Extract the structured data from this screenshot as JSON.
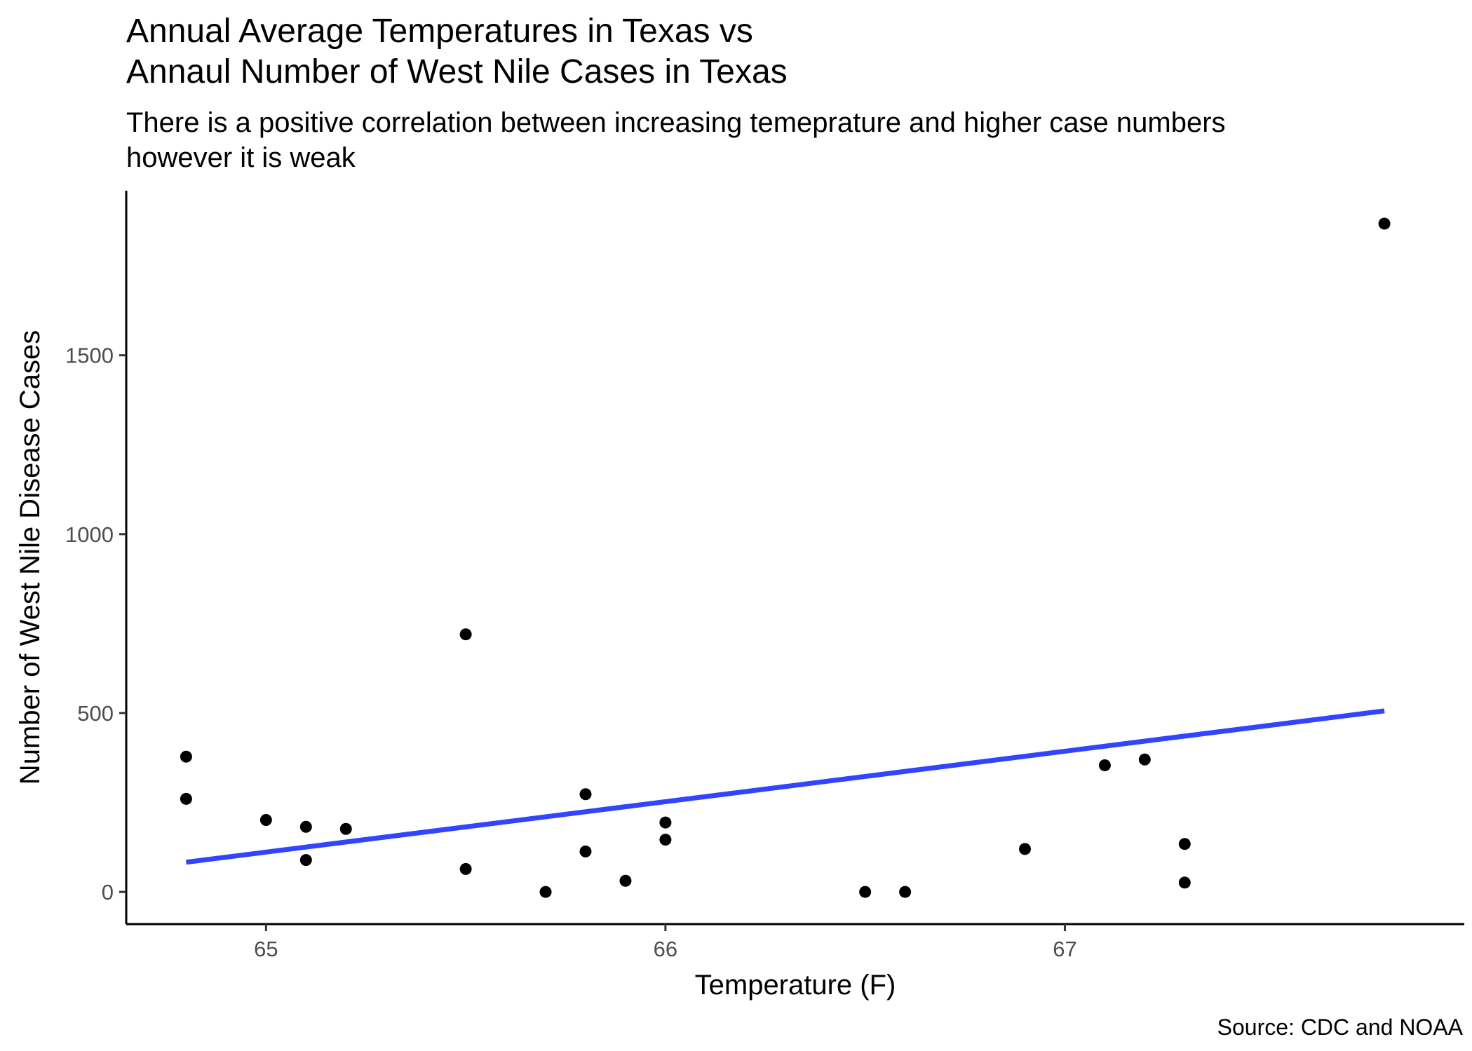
{
  "chart_data": {
    "type": "scatter",
    "title": [
      "Annual Average Temperatures in Texas vs",
      "Annaul Number of West Nile Cases in Texas"
    ],
    "subtitle": [
      "There is a positive correlation between increasing temeprature and higher case numbers",
      "however it is weak"
    ],
    "xlabel": "Temperature (F)",
    "ylabel": "Number of West Nile Disease Cases",
    "caption": "Source: CDC and NOAA",
    "xlim": [
      64.65,
      68.0
    ],
    "ylim": [
      -90,
      1960
    ],
    "x_ticks": [
      65,
      66,
      67
    ],
    "x_tick_labels": [
      "65",
      "66",
      "67"
    ],
    "y_ticks": [
      0,
      500,
      1000,
      1500
    ],
    "y_tick_labels": [
      "0",
      "500",
      "1000",
      "1500"
    ],
    "grid": false,
    "legend": "none",
    "point_color": "#000000",
    "trend_color": "#3344ff",
    "points": [
      {
        "x": 64.8,
        "y": 378
      },
      {
        "x": 64.8,
        "y": 260
      },
      {
        "x": 65.0,
        "y": 201
      },
      {
        "x": 65.1,
        "y": 182
      },
      {
        "x": 65.1,
        "y": 89
      },
      {
        "x": 65.2,
        "y": 176
      },
      {
        "x": 65.5,
        "y": 720
      },
      {
        "x": 65.5,
        "y": 64
      },
      {
        "x": 65.7,
        "y": 0
      },
      {
        "x": 65.8,
        "y": 273
      },
      {
        "x": 65.8,
        "y": 113
      },
      {
        "x": 65.9,
        "y": 31
      },
      {
        "x": 66.0,
        "y": 194
      },
      {
        "x": 66.0,
        "y": 146
      },
      {
        "x": 66.5,
        "y": 0
      },
      {
        "x": 66.6,
        "y": 0
      },
      {
        "x": 66.9,
        "y": 120
      },
      {
        "x": 67.1,
        "y": 354
      },
      {
        "x": 67.2,
        "y": 370
      },
      {
        "x": 67.3,
        "y": 134
      },
      {
        "x": 67.3,
        "y": 26
      },
      {
        "x": 67.8,
        "y": 1868
      }
    ],
    "trend_line": {
      "x": [
        64.8,
        67.8
      ],
      "y": [
        83,
        506
      ]
    }
  }
}
